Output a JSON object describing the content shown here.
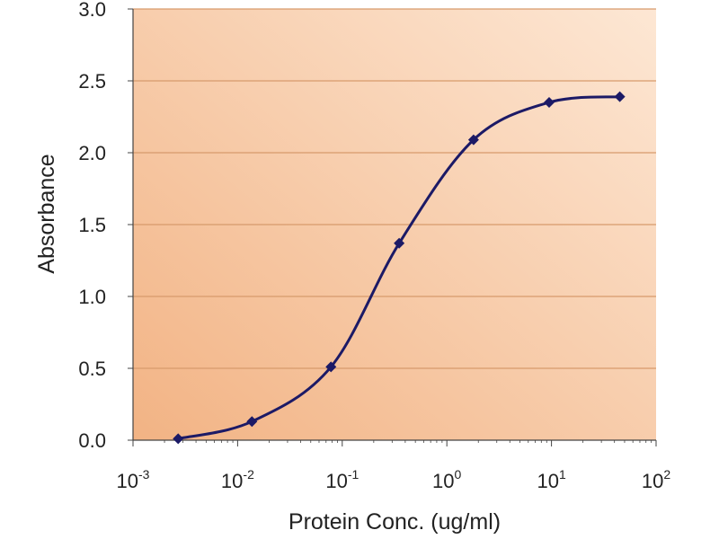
{
  "chart_data": {
    "type": "line",
    "title": "",
    "xlabel": "Protein Conc. (ug/ml)",
    "ylabel": "Absorbance",
    "xscale": "log",
    "xlim": [
      0.001,
      100
    ],
    "ylim": [
      0,
      3
    ],
    "grid": "horizontal",
    "legend": "none",
    "x_ticks": [
      {
        "base": "10",
        "exp": "-3"
      },
      {
        "base": "10",
        "exp": "-2"
      },
      {
        "base": "10",
        "exp": "-1"
      },
      {
        "base": "10",
        "exp": "0"
      },
      {
        "base": "10",
        "exp": "1"
      },
      {
        "base": "10",
        "exp": "2"
      }
    ],
    "y_ticks": [
      "0.0",
      "0.5",
      "1.0",
      "1.5",
      "2.0",
      "2.5",
      "3.0"
    ],
    "series": [
      {
        "x": [
          0.0027,
          0.0137,
          0.078,
          0.35,
          1.8,
          9.5,
          45
        ],
        "y": [
          0.01,
          0.13,
          0.51,
          1.37,
          2.09,
          2.35,
          2.39
        ]
      }
    ]
  },
  "colors": {
    "plot_bg_dark": "#f2b384",
    "plot_bg_light": "#fde7d4",
    "gridline": "#d79a6c",
    "line": "#1c1a66",
    "marker": "#1c1a66",
    "axis": "#444444",
    "text": "#222222"
  }
}
